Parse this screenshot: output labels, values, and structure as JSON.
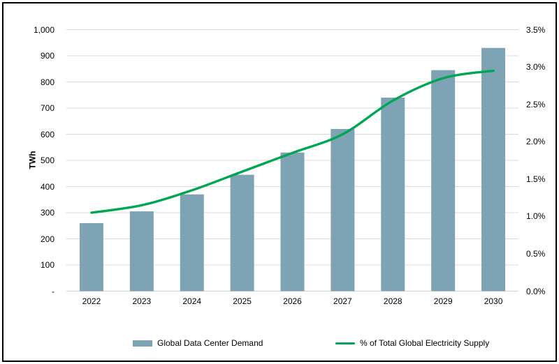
{
  "chart_data": {
    "type": "bar",
    "subtype": "combo-bar-line",
    "title": "",
    "categories": [
      "2022",
      "2023",
      "2024",
      "2025",
      "2026",
      "2027",
      "2028",
      "2029",
      "2030"
    ],
    "series": [
      {
        "name": "Global Data Center Demand",
        "type": "bar",
        "axis": "left",
        "unit": "TWh",
        "color": "#7EA3B4",
        "values": [
          260,
          305,
          370,
          445,
          530,
          620,
          740,
          845,
          930
        ]
      },
      {
        "name": "% of Total Global Electricity Supply",
        "type": "line",
        "axis": "right",
        "unit": "%",
        "color": "#00A651",
        "values": [
          1.05,
          1.15,
          1.35,
          1.6,
          1.85,
          2.1,
          2.55,
          2.85,
          2.95
        ]
      }
    ],
    "left_axis": {
      "title": "TWh",
      "min": 0,
      "max": 1000,
      "step": 100,
      "tick_labels": [
        "-",
        "100",
        "200",
        "300",
        "400",
        "500",
        "600",
        "700",
        "800",
        "900",
        "1,000"
      ]
    },
    "right_axis": {
      "title": "",
      "min": 0,
      "max": 3.5,
      "step": 0.5,
      "tick_labels": [
        "0.0%",
        "0.5%",
        "1.0%",
        "1.5%",
        "2.0%",
        "2.5%",
        "3.0%",
        "3.5%"
      ]
    },
    "gridlines": true,
    "legend_position": "bottom",
    "colors": {
      "background": "#FFFFFF",
      "gridline": "#D9D9D9",
      "axis_line": "#D0D0D0",
      "text": "#000000",
      "border": "#000000"
    }
  }
}
